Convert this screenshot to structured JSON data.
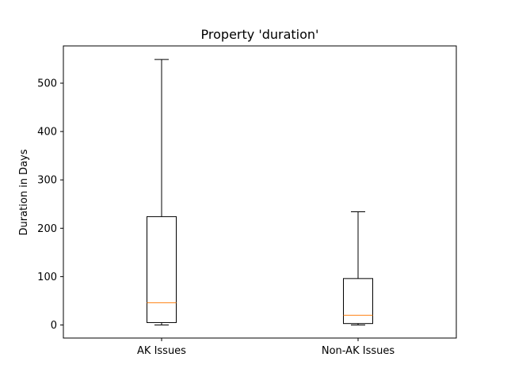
{
  "chart_data": {
    "type": "box",
    "title": "Property 'duration'",
    "xlabel": "",
    "ylabel": "Duration in Days",
    "categories": [
      "AK Issues",
      "Non-AK Issues"
    ],
    "boxes": [
      {
        "category": "AK Issues",
        "whisker_low": 0,
        "q1": 5,
        "median": 46,
        "q3": 224,
        "whisker_high": 549
      },
      {
        "category": "Non-AK Issues",
        "whisker_low": 0,
        "q1": 3,
        "median": 20,
        "q3": 96,
        "whisker_high": 234
      }
    ],
    "ylim": [
      -27,
      577
    ],
    "yticks": [
      0,
      100,
      200,
      300,
      400,
      500
    ],
    "grid": false,
    "colors": {
      "box": "#000000",
      "median": "#ff7f0e"
    }
  }
}
